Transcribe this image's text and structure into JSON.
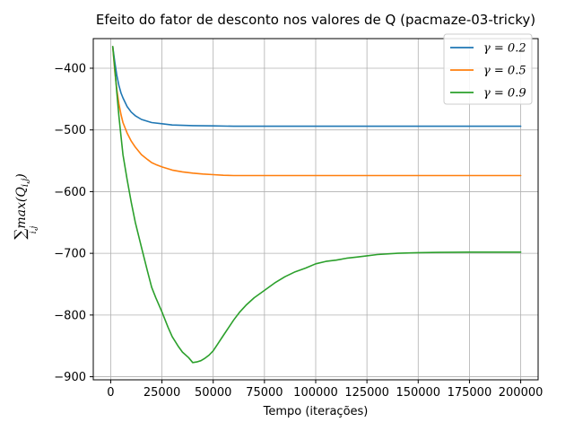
{
  "chart_data": {
    "type": "line",
    "title": "Efeito do fator de desconto nos valores de Q (pacmaze-03-tricky)",
    "xlabel": "Tempo (iterações)",
    "ylabel": "∑max(Qᵢ,ⱼ) (i,j)",
    "ylabel_sum": "∑",
    "ylabel_sub": "i,j",
    "ylabel_body": "max(Q",
    "ylabel_inner_sub": "i,j",
    "ylabel_close": ")",
    "xlim": [
      -8500,
      208500
    ],
    "ylim": [
      -905,
      -352
    ],
    "xticks": [
      0,
      25000,
      50000,
      75000,
      100000,
      125000,
      150000,
      175000,
      200000
    ],
    "xtick_labels": [
      "0",
      "25000",
      "50000",
      "75000",
      "100000",
      "125000",
      "150000",
      "175000",
      "200000"
    ],
    "yticks": [
      -900,
      -800,
      -700,
      -600,
      -500,
      -400
    ],
    "ytick_labels": [
      "−900",
      "−800",
      "−700",
      "−600",
      "−500",
      "−400"
    ],
    "grid": true,
    "legend_position": "top-right",
    "series": [
      {
        "name": "γ = 0.2",
        "color": "#1f77b4",
        "x": [
          1000,
          2000,
          3000,
          4000,
          5000,
          6000,
          8000,
          10000,
          12000,
          15000,
          18000,
          20000,
          25000,
          30000,
          40000,
          50000,
          60000,
          80000,
          100000,
          125000,
          150000,
          175000,
          200000
        ],
        "y": [
          -365,
          -390,
          -412,
          -428,
          -440,
          -448,
          -462,
          -471,
          -477,
          -483,
          -486,
          -488,
          -490,
          -492,
          -493,
          -493.5,
          -494,
          -494,
          -494,
          -494,
          -494,
          -494,
          -494
        ]
      },
      {
        "name": "γ = 0.5",
        "color": "#ff7f0e",
        "x": [
          1000,
          2000,
          3000,
          4000,
          5000,
          6000,
          8000,
          10000,
          12000,
          15000,
          18000,
          20000,
          22000,
          25000,
          30000,
          35000,
          40000,
          45000,
          50000,
          55000,
          60000,
          70000,
          80000,
          100000,
          125000,
          150000,
          175000,
          200000
        ],
        "y": [
          -365,
          -405,
          -435,
          -458,
          -475,
          -488,
          -505,
          -518,
          -528,
          -540,
          -548,
          -553,
          -556,
          -560,
          -565,
          -568,
          -570,
          -571.5,
          -572.5,
          -573.5,
          -574,
          -574,
          -574,
          -574,
          -574,
          -574,
          -574,
          -574
        ]
      },
      {
        "name": "γ = 0.9",
        "color": "#2ca02c",
        "x": [
          1000,
          2000,
          3000,
          4000,
          5000,
          6000,
          8000,
          10000,
          12000,
          15000,
          18000,
          20000,
          22000,
          25000,
          28000,
          30000,
          33000,
          35000,
          38000,
          40000,
          42000,
          44000,
          46000,
          48000,
          50000,
          52000,
          55000,
          58000,
          60000,
          63000,
          66000,
          70000,
          75000,
          80000,
          85000,
          90000,
          95000,
          100000,
          105000,
          110000,
          115000,
          120000,
          125000,
          130000,
          140000,
          150000,
          160000,
          175000,
          190000,
          200000
        ],
        "y": [
          -365,
          -400,
          -440,
          -478,
          -510,
          -540,
          -580,
          -617,
          -650,
          -690,
          -730,
          -755,
          -772,
          -795,
          -820,
          -835,
          -851,
          -860,
          -869,
          -877,
          -876,
          -874,
          -870,
          -865,
          -858,
          -848,
          -833,
          -818,
          -808,
          -795,
          -784,
          -772,
          -760,
          -748,
          -738,
          -730,
          -724,
          -717,
          -713,
          -711,
          -708,
          -706,
          -704,
          -702,
          -700,
          -699,
          -698.5,
          -698,
          -698,
          -698
        ]
      }
    ]
  }
}
